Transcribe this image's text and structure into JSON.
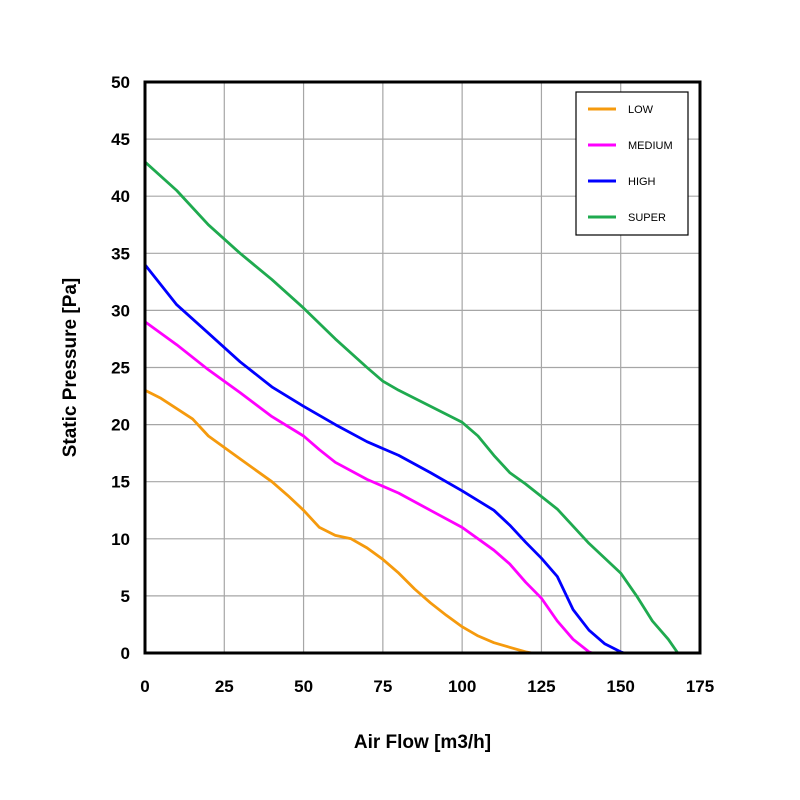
{
  "chart_data": {
    "type": "line",
    "xlabel": "Air Flow [m3/h]",
    "ylabel": "Static Pressure [Pa]",
    "xlim": [
      0,
      175
    ],
    "ylim": [
      0,
      50
    ],
    "x_ticks": [
      "0",
      "25",
      "50",
      "75",
      "100",
      "125",
      "150",
      "175"
    ],
    "y_ticks": [
      "0",
      "5",
      "10",
      "15",
      "20",
      "25",
      "30",
      "35",
      "40",
      "45",
      "50"
    ],
    "grid": true,
    "legend_position": "top-right",
    "series": [
      {
        "name": "LOW",
        "color": "#f59a0d",
        "points": [
          [
            0,
            23
          ],
          [
            5,
            22.3
          ],
          [
            15,
            20.5
          ],
          [
            20,
            19
          ],
          [
            30,
            17
          ],
          [
            40,
            15
          ],
          [
            45,
            13.8
          ],
          [
            50,
            12.5
          ],
          [
            55,
            11
          ],
          [
            60,
            10.3
          ],
          [
            65,
            10
          ],
          [
            70,
            9.2
          ],
          [
            75,
            8.2
          ],
          [
            80,
            7
          ],
          [
            85,
            5.6
          ],
          [
            90,
            4.4
          ],
          [
            95,
            3.3
          ],
          [
            100,
            2.3
          ],
          [
            105,
            1.5
          ],
          [
            110,
            0.9
          ],
          [
            115,
            0.5
          ],
          [
            120,
            0.1
          ],
          [
            122,
            0
          ]
        ]
      },
      {
        "name": "MEDIUM",
        "color": "#ff00ff",
        "points": [
          [
            0,
            29
          ],
          [
            10,
            27
          ],
          [
            20,
            24.8
          ],
          [
            30,
            22.8
          ],
          [
            40,
            20.7
          ],
          [
            50,
            19
          ],
          [
            55,
            17.8
          ],
          [
            60,
            16.7
          ],
          [
            70,
            15.2
          ],
          [
            80,
            14
          ],
          [
            90,
            12.5
          ],
          [
            100,
            11
          ],
          [
            110,
            9
          ],
          [
            115,
            7.8
          ],
          [
            120,
            6.2
          ],
          [
            125,
            4.8
          ],
          [
            130,
            2.8
          ],
          [
            135,
            1.2
          ],
          [
            140,
            0.1
          ],
          [
            141,
            0
          ]
        ]
      },
      {
        "name": "HIGH",
        "color": "#0000ff",
        "points": [
          [
            0,
            34
          ],
          [
            10,
            30.5
          ],
          [
            20,
            28
          ],
          [
            30,
            25.5
          ],
          [
            40,
            23.3
          ],
          [
            50,
            21.6
          ],
          [
            60,
            20
          ],
          [
            70,
            18.5
          ],
          [
            80,
            17.3
          ],
          [
            90,
            15.8
          ],
          [
            100,
            14.2
          ],
          [
            110,
            12.5
          ],
          [
            115,
            11.2
          ],
          [
            120,
            9.7
          ],
          [
            125,
            8.3
          ],
          [
            130,
            6.7
          ],
          [
            135,
            3.8
          ],
          [
            140,
            2
          ],
          [
            145,
            0.8
          ],
          [
            150,
            0.1
          ],
          [
            151,
            0
          ]
        ]
      },
      {
        "name": "SUPER",
        "color": "#1faa4f",
        "points": [
          [
            0,
            43
          ],
          [
            10,
            40.5
          ],
          [
            20,
            37.5
          ],
          [
            30,
            35
          ],
          [
            40,
            32.7
          ],
          [
            50,
            30.2
          ],
          [
            60,
            27.5
          ],
          [
            70,
            25
          ],
          [
            75,
            23.8
          ],
          [
            80,
            23
          ],
          [
            90,
            21.6
          ],
          [
            100,
            20.2
          ],
          [
            105,
            19
          ],
          [
            110,
            17.3
          ],
          [
            115,
            15.8
          ],
          [
            120,
            14.8
          ],
          [
            130,
            12.6
          ],
          [
            140,
            9.6
          ],
          [
            150,
            7
          ],
          [
            155,
            5
          ],
          [
            160,
            2.8
          ],
          [
            165,
            1.2
          ],
          [
            168,
            0
          ]
        ]
      }
    ]
  }
}
